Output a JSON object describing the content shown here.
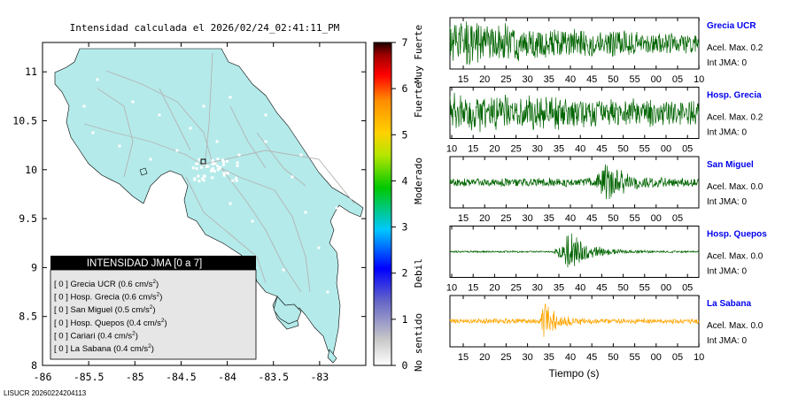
{
  "title": "Intensidad calculada el 2026/02/24_02:41:11_PM",
  "footer": "LISUCR 20260224204113",
  "colors": {
    "land": "#b4eaea",
    "water": "#ffffff",
    "road": "#b4b4b4",
    "waveform_green": "#006400",
    "waveform_orange": "#ffa500",
    "station_name": "#0000ee",
    "legend_header_bg": "#000000",
    "legend_bg": "#e6e6e6"
  },
  "map": {
    "x_ticks": [
      "-86",
      "-85.5",
      "-85",
      "-84.5",
      "-84",
      "-83.5",
      "-83"
    ],
    "y_ticks": [
      "8",
      "8.5",
      "9",
      "9.5",
      "10",
      "10.5",
      "11"
    ],
    "xlim": [
      -86,
      -82.5
    ],
    "ylim": [
      8,
      11.3
    ]
  },
  "legend": {
    "header": "INTENSIDAD JMA [0 a 7]",
    "items": [
      {
        "intensity": "[ 0 ]",
        "name": "Grecia UCR",
        "value": "(0.6 cm/s",
        "sup": "2",
        "close": ")"
      },
      {
        "intensity": "[ 0 ]",
        "name": "Hosp. Grecia",
        "value": "(0.6 cm/s",
        "sup": "2",
        "close": ")"
      },
      {
        "intensity": "[ 0 ]",
        "name": "San Miguel",
        "value": "(0.5 cm/s",
        "sup": "2",
        "close": ")"
      },
      {
        "intensity": "[ 0 ]",
        "name": "Hosp. Quepos",
        "value": "(0.4 cm/s",
        "sup": "2",
        "close": ")"
      },
      {
        "intensity": "[ 0 ]",
        "name": "Cariari",
        "value": "(0.4 cm/s",
        "sup": "2",
        "close": ")"
      },
      {
        "intensity": "[ 0 ]",
        "name": "La Sabana",
        "value": "(0.4 cm/s",
        "sup": "2",
        "close": ")"
      }
    ]
  },
  "colorbar": {
    "ticks": [
      "0",
      "1",
      "2",
      "3",
      "4",
      "5",
      "6",
      "7"
    ],
    "labels": [
      "No sentido",
      "Debil",
      "Moderado",
      "Fuerte",
      "Muy Fuerte"
    ],
    "label_levels": [
      0.5,
      2,
      4,
      5.75,
      6.75
    ]
  },
  "chart_data": {
    "type": "line",
    "xlabel": "Tiempo (s)",
    "panels": [
      {
        "station": "Grecia UCR",
        "accel_label": "Acel. Max. 0.2",
        "int_label": "Int JMA: 0",
        "color": "waveform_green",
        "ticks": [
          "15",
          "20",
          "25",
          "30",
          "35",
          "40",
          "45",
          "50",
          "55",
          "00",
          "05",
          "10"
        ],
        "first_tick": 15,
        "peak_center": 15,
        "decay": 55,
        "onset": 0,
        "peak_amp": 0.9,
        "noise": 0.12
      },
      {
        "station": "Hosp. Grecia",
        "accel_label": "Acel. Max. 0.2",
        "int_label": "Int JMA: 0",
        "color": "waveform_green",
        "ticks": [
          "10",
          "15",
          "20",
          "25",
          "30",
          "35",
          "40",
          "45",
          "50",
          "55",
          "00",
          "05"
        ],
        "first_tick": 10,
        "peak_center": 10,
        "decay": 75,
        "onset": 0,
        "peak_amp": 0.75,
        "noise": 0.2
      },
      {
        "station": "San Miguel",
        "accel_label": "Acel. Max. 0.0",
        "int_label": "Int JMA: 0",
        "color": "waveform_green",
        "ticks": [
          "15",
          "20",
          "25",
          "30",
          "35",
          "40",
          "45",
          "50",
          "55",
          "00",
          "05"
        ],
        "first_tick": 15,
        "peak_center": 48,
        "decay": 4,
        "onset": 46,
        "peak_amp": 0.95,
        "noise": 0.2
      },
      {
        "station": "Hosp. Quepos",
        "accel_label": "Acel. Max. 0.0",
        "int_label": "Int JMA: 0",
        "color": "waveform_green",
        "ticks": [
          "10",
          "15",
          "20",
          "25",
          "30",
          "35",
          "40",
          "45",
          "50",
          "55",
          "00",
          "05"
        ],
        "first_tick": 10,
        "peak_center": 37,
        "decay": 5,
        "onset": 34,
        "peak_amp": 0.95,
        "noise": 0.04
      },
      {
        "station": "La Sabana",
        "accel_label": "Acel. Max. 0.0",
        "int_label": "Int JMA: 0",
        "color": "waveform_orange",
        "ticks": [
          "15",
          "20",
          "25",
          "30",
          "35",
          "40",
          "45",
          "50",
          "55",
          "00",
          "05",
          "10"
        ],
        "first_tick": 15,
        "peak_center": 34,
        "decay": 2.5,
        "onset": 33,
        "peak_amp": 0.95,
        "noise": 0.12
      }
    ]
  }
}
